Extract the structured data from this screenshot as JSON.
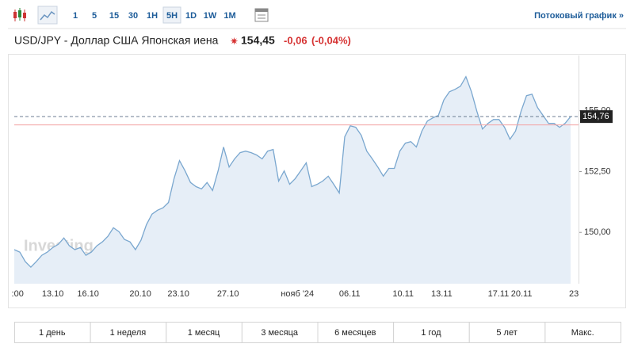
{
  "toolbar": {
    "intervals": [
      "1",
      "5",
      "15",
      "30",
      "1H",
      "5H",
      "1D",
      "1W",
      "1M"
    ],
    "selected_index": 5,
    "streaming_link": "Потоковый график »"
  },
  "header": {
    "name": "USD/JPY - Доллар США Японская иена",
    "price": "154,45",
    "change": "-0,06",
    "change_percent": "(-0,04%)"
  },
  "watermark": "Investing.com",
  "chart_data": {
    "type": "area",
    "color": "#7aa7cf",
    "fill": "#e6eef7",
    "values": [
      149.29,
      149.19,
      148.8,
      148.57,
      148.8,
      149.06,
      149.19,
      149.38,
      149.51,
      149.77,
      149.45,
      149.29,
      149.38,
      149.06,
      149.19,
      149.45,
      149.61,
      149.84,
      150.19,
      150.03,
      149.71,
      149.61,
      149.29,
      149.68,
      150.32,
      150.75,
      150.91,
      151.01,
      151.23,
      152.21,
      152.95,
      152.53,
      152.05,
      151.88,
      151.79,
      152.05,
      151.72,
      152.53,
      153.51,
      152.69,
      153.02,
      153.28,
      153.34,
      153.28,
      153.18,
      153.02,
      153.34,
      153.41,
      152.11,
      152.53,
      151.98,
      152.21,
      152.53,
      152.86,
      151.88,
      151.98,
      152.11,
      152.31,
      151.98,
      151.62,
      153.93,
      154.38,
      154.32,
      153.99,
      153.34,
      153.02,
      152.69,
      152.31,
      152.63,
      152.63,
      153.34,
      153.67,
      153.73,
      153.51,
      154.16,
      154.58,
      154.71,
      154.81,
      155.45,
      155.78,
      155.88,
      156.01,
      156.4,
      155.78,
      154.97,
      154.25,
      154.48,
      154.64,
      154.64,
      154.32,
      153.83,
      154.16,
      154.97,
      155.62,
      155.68,
      155.13,
      154.81,
      154.48,
      154.48,
      154.32,
      154.48,
      154.76
    ],
    "xlim": [
      0,
      101
    ],
    "xticks": [
      {
        "value": 0.6,
        "label": ":00"
      },
      {
        "value": 7,
        "label": "13.10"
      },
      {
        "value": 13.4,
        "label": "16.10"
      },
      {
        "value": 22.9,
        "label": "20.10"
      },
      {
        "value": 29.8,
        "label": "23.10"
      },
      {
        "value": 38.8,
        "label": "27.10"
      },
      {
        "value": 51.4,
        "label": "нояб '24"
      },
      {
        "value": 60.9,
        "label": "06.11"
      },
      {
        "value": 70.6,
        "label": "10.11"
      },
      {
        "value": 77.6,
        "label": "13.11"
      },
      {
        "value": 87.9,
        "label": "17.11"
      },
      {
        "value": 92.1,
        "label": "20.11"
      },
      {
        "value": 101.6,
        "label": "23"
      }
    ],
    "ylim": [
      147.89,
      157.11
    ],
    "yticks": [
      {
        "value": 150,
        "label": "150,00"
      },
      {
        "value": 152.5,
        "label": "152,50"
      },
      {
        "value": 155,
        "label": "155,00"
      }
    ],
    "reference_line": {
      "value": 154.42,
      "color": "#f3a0a0"
    },
    "last_price": {
      "value": 154.76,
      "label": "154,76"
    }
  },
  "ranges": [
    "1 день",
    "1 неделя",
    "1 месяц",
    "3 месяца",
    "6 месяцев",
    "1 год",
    "5 лет",
    "Макс."
  ]
}
